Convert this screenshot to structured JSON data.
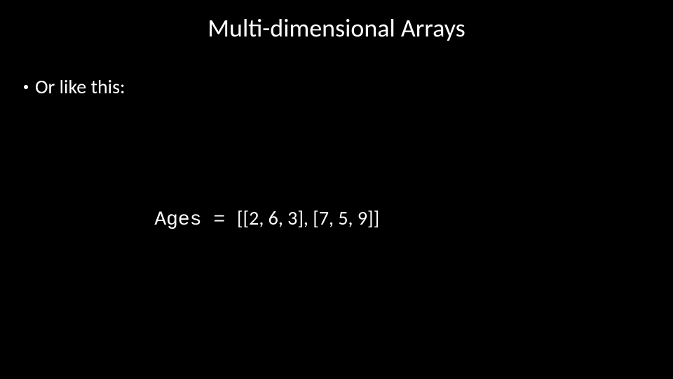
{
  "slide": {
    "title": "Multi-dimensional Arrays",
    "bullet": "Or like this:",
    "code": {
      "var_segment": "Ages = ",
      "rest_segment": "[[2, 6, 3], [7, 5, 9]]"
    }
  },
  "style": {
    "background_color": "#000000",
    "text_color": "#ffffff",
    "title_fontsize": 36,
    "body_fontsize": 28,
    "code_fontsize": 28,
    "body_font": "Calibri",
    "code_font": "Courier New"
  }
}
